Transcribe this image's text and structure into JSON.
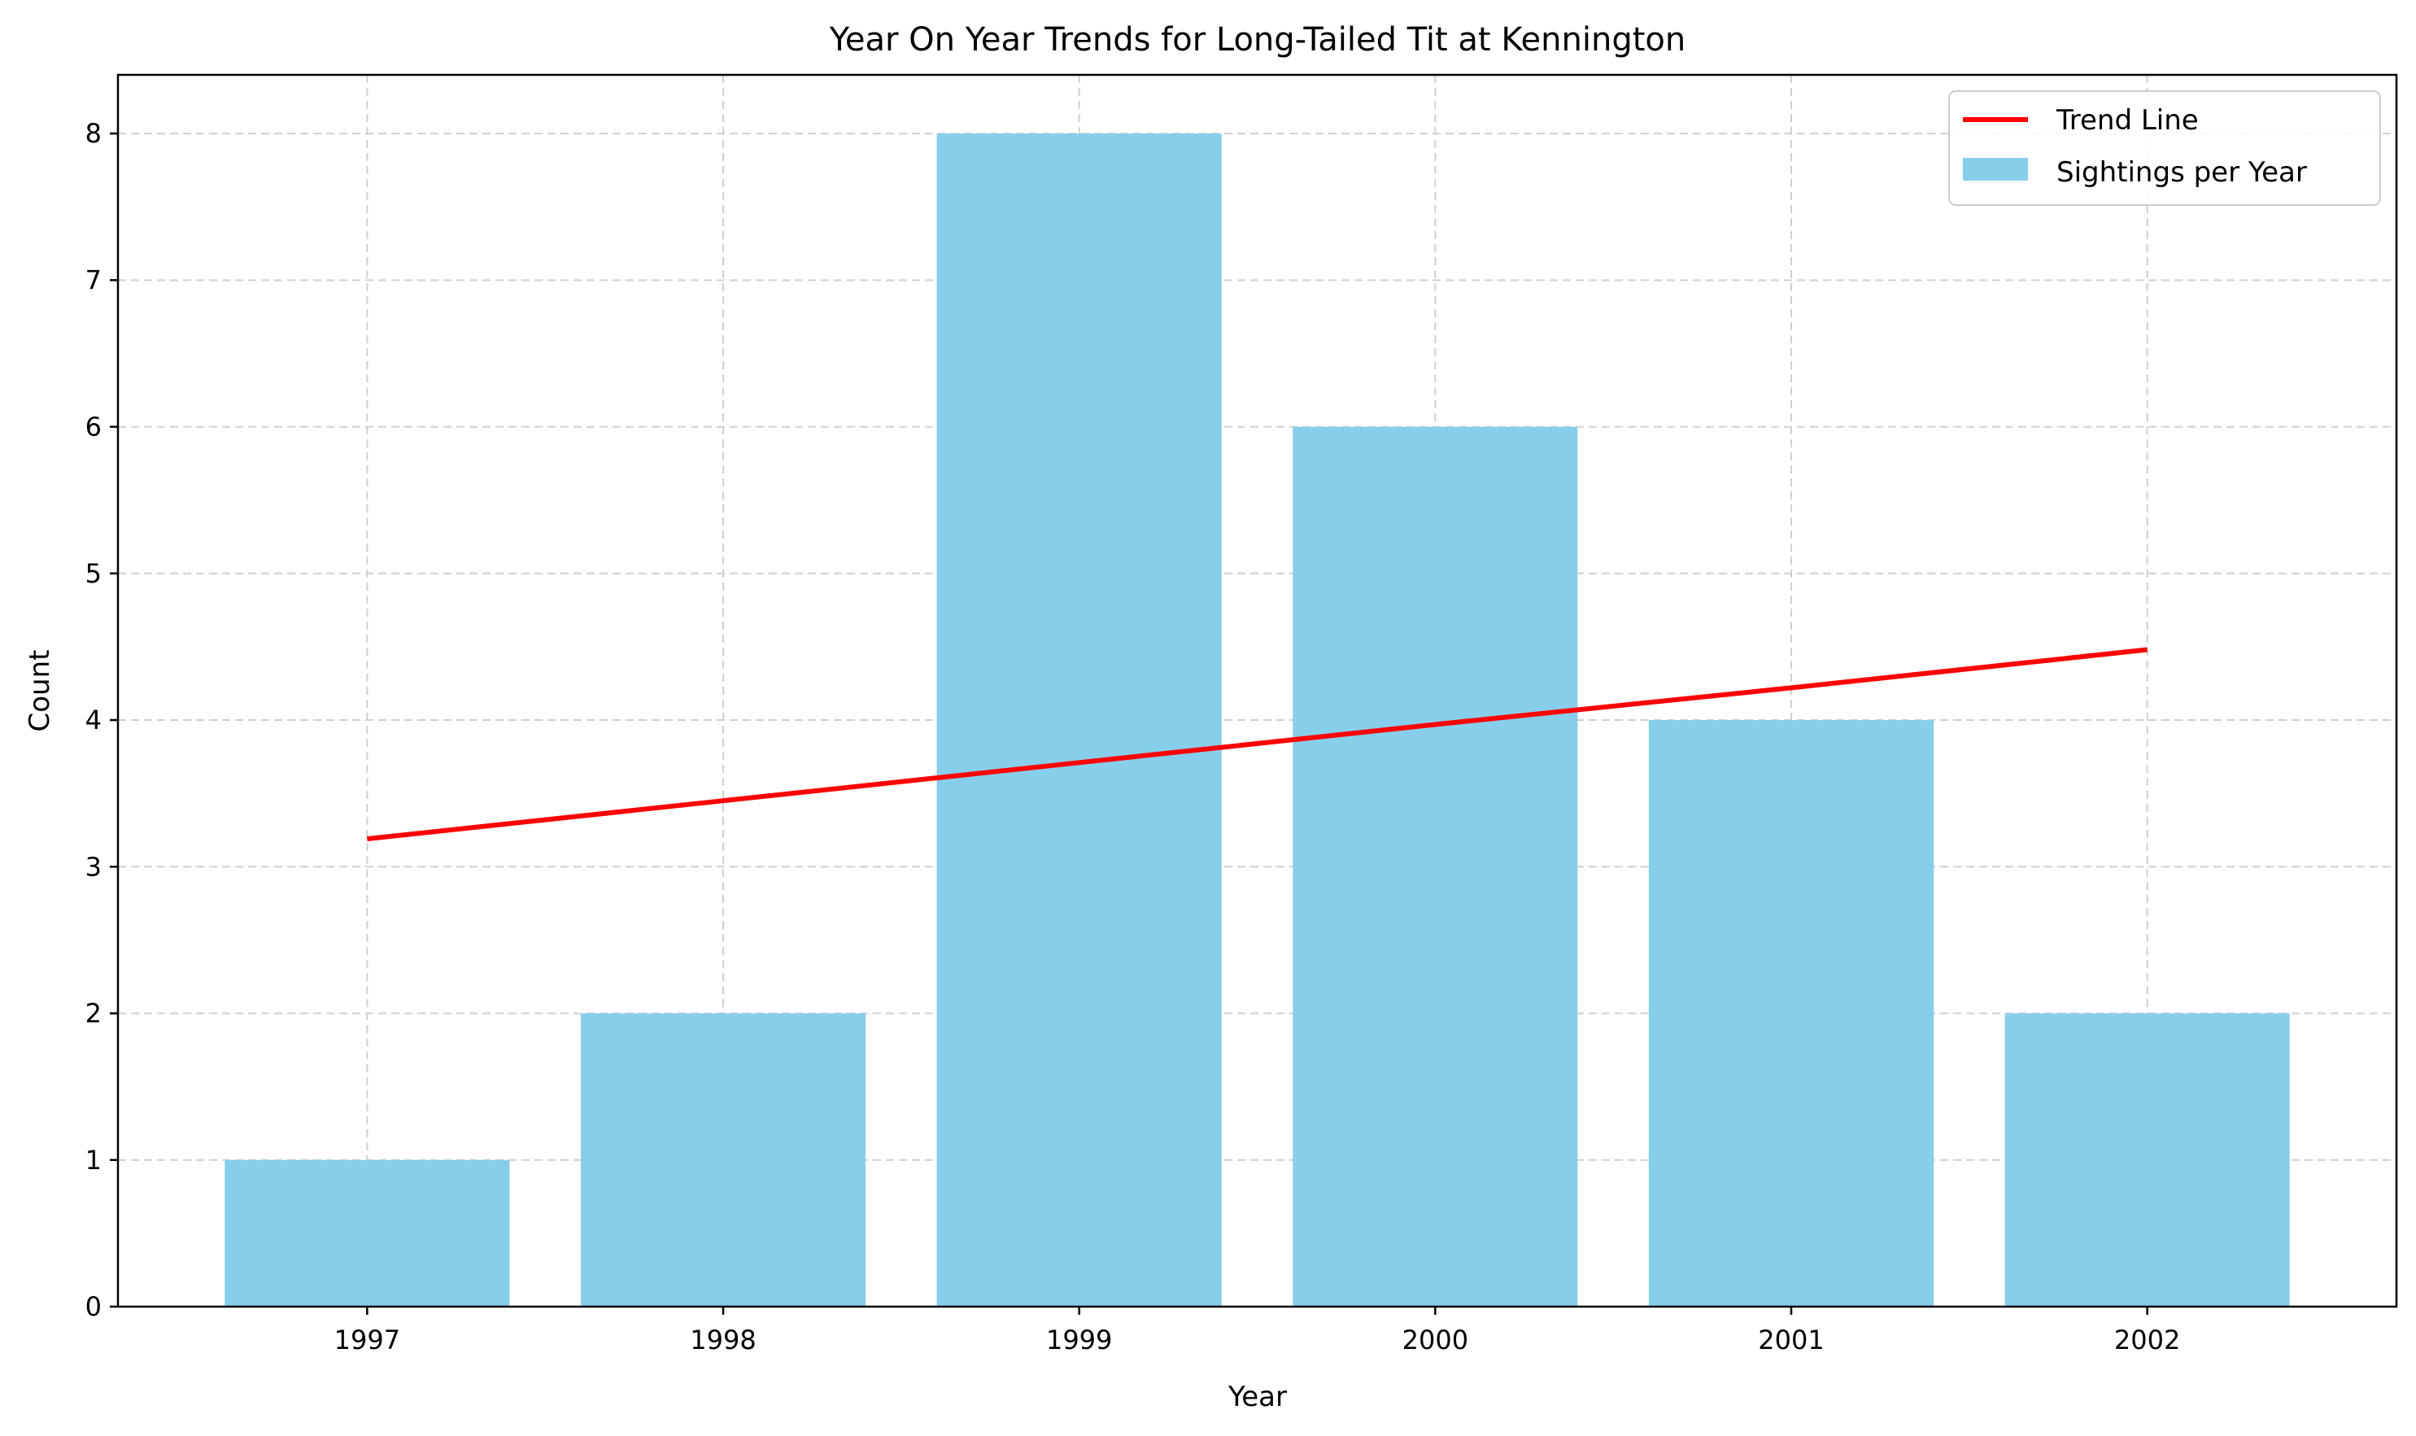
{
  "chart_data": {
    "type": "bar",
    "title": "Year On Year Trends for Long-Tailed Tit at Kennington",
    "xlabel": "Year",
    "ylabel": "Count",
    "categories": [
      "1997",
      "1998",
      "1999",
      "2000",
      "2001",
      "2002"
    ],
    "series": [
      {
        "name": "Sightings per Year",
        "type": "bar",
        "values": [
          1,
          2,
          8,
          6,
          4,
          2
        ],
        "color": "#87CEEB"
      },
      {
        "name": "Trend Line",
        "type": "line",
        "values": [
          3.19,
          3.45,
          3.71,
          3.97,
          4.22,
          4.48
        ],
        "color": "#FF0000"
      }
    ],
    "ylim": [
      0,
      8.4
    ],
    "yticks": [
      "0",
      "1",
      "2",
      "3",
      "4",
      "5",
      "6",
      "7",
      "8"
    ],
    "grid": true,
    "legend_position": "top-right"
  }
}
